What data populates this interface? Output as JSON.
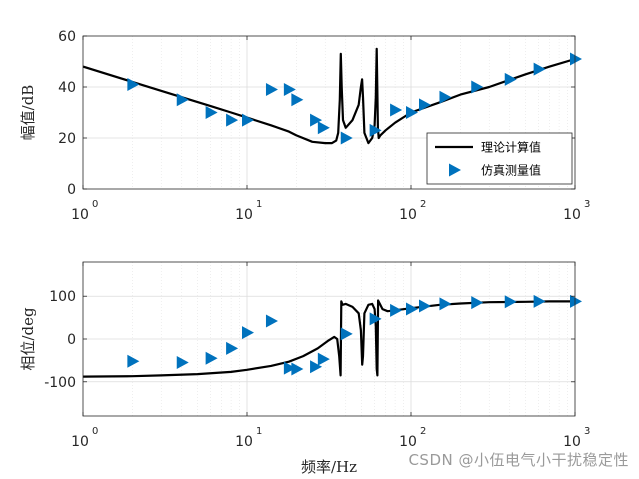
{
  "chart_data": [
    {
      "type": "line",
      "xscale": "log",
      "xlim": [
        1,
        1000
      ],
      "ylim": [
        0,
        60
      ],
      "yticks": [
        0,
        20,
        40,
        60
      ],
      "xtick_bases": [
        "10",
        "10",
        "10",
        "10"
      ],
      "xtick_exps": [
        "0",
        "1",
        "2",
        "3"
      ],
      "ylabel": "幅值/dB",
      "xlabel": "",
      "grid": true,
      "legend_position": "lower-right",
      "series": [
        {
          "name": "理论计算值",
          "style": "line",
          "color": "#000000",
          "x": [
            1,
            2,
            4,
            6,
            8,
            10,
            14,
            18,
            20,
            25,
            30,
            33,
            35,
            36,
            36.8,
            37.3,
            37.8,
            38.5,
            40,
            44,
            48,
            49.5,
            50.3,
            51,
            52,
            55,
            58,
            60,
            61,
            61.8,
            62.3,
            62.8,
            63.5,
            65,
            70,
            80,
            100,
            150,
            200,
            300,
            500,
            700,
            1000
          ],
          "y": [
            48,
            42,
            36,
            32.5,
            30,
            28,
            25,
            22.5,
            21,
            18.5,
            18,
            18,
            19,
            22,
            35,
            53,
            40,
            27,
            24,
            27,
            33,
            40,
            43,
            36,
            22,
            18,
            20,
            25,
            36,
            55,
            40,
            24,
            20,
            21,
            23,
            26,
            30,
            34,
            37,
            40,
            45,
            48,
            51
          ]
        },
        {
          "name": "仿真测量值",
          "style": "marker",
          "marker": "triangle-right",
          "color": "#0072BD",
          "x": [
            2,
            4,
            6,
            8,
            10,
            14,
            18,
            20,
            26,
            29,
            40,
            60,
            80,
            100,
            120,
            160,
            250,
            400,
            600,
            1000
          ],
          "y": [
            41,
            35,
            30,
            27,
            27,
            39,
            39,
            35,
            27,
            24,
            20,
            23,
            31,
            30,
            33,
            36,
            40,
            43,
            47,
            51
          ]
        }
      ]
    },
    {
      "type": "line",
      "xscale": "log",
      "xlim": [
        1,
        1000
      ],
      "ylim": [
        -180,
        180
      ],
      "yticks": [
        -100,
        0,
        100
      ],
      "xtick_bases": [
        "10",
        "10",
        "10",
        "10"
      ],
      "xtick_exps": [
        "0",
        "1",
        "2",
        "3"
      ],
      "ylabel": "相位/deg",
      "xlabel": "频率/Hz",
      "grid": true,
      "series": [
        {
          "name": "理论计算值",
          "style": "line",
          "color": "#000000",
          "x": [
            1,
            2,
            3,
            5,
            8,
            10,
            14,
            18,
            22,
            27,
            31,
            34,
            35.5,
            36.5,
            37.2,
            37.6,
            38.2,
            40,
            44,
            48,
            49.5,
            50.4,
            51,
            52,
            55,
            58,
            60,
            61,
            61.8,
            62.4,
            63,
            64,
            67,
            72,
            80,
            100,
            150,
            200,
            300,
            500,
            700,
            1000
          ],
          "y": [
            -88,
            -87,
            -85,
            -82,
            -77,
            -72,
            -63,
            -53,
            -40,
            -22,
            -5,
            5,
            0,
            -40,
            -85,
            88,
            80,
            82,
            75,
            60,
            20,
            -60,
            -40,
            60,
            80,
            82,
            70,
            30,
            -70,
            -85,
            90,
            85,
            70,
            65,
            67,
            72,
            80,
            83,
            86,
            87,
            88,
            88
          ]
        },
        {
          "name": "仿真测量值",
          "style": "marker",
          "marker": "triangle-right",
          "color": "#0072BD",
          "x": [
            2,
            4,
            6,
            8,
            10,
            14,
            18,
            20,
            26,
            29,
            40,
            60,
            80,
            100,
            120,
            160,
            250,
            400,
            600,
            1000
          ],
          "y": [
            -52,
            -55,
            -45,
            -22,
            15,
            42,
            -68,
            -70,
            -65,
            -47,
            12,
            47,
            67,
            70,
            77,
            82,
            85,
            87,
            88,
            88
          ]
        }
      ]
    }
  ],
  "watermark": "CSDN @小伍电气小干扰稳定性"
}
